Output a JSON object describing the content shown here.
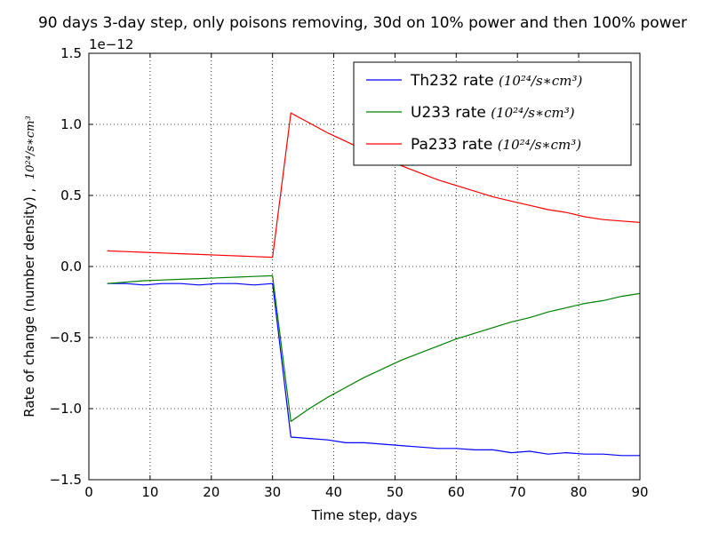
{
  "chart_data": {
    "type": "line",
    "title": "90 days 3-day step, only poisons removing, 30d on 10% power and then 100% power",
    "xlabel": "Time step, days",
    "ylabel": "Rate of change (number density) ,",
    "ylabel_unit": "10²⁴/s∗cm³",
    "y_scale_label": "1e−12",
    "xlim": [
      0,
      90
    ],
    "ylim": [
      -1.5,
      1.5
    ],
    "x_ticks": [
      0,
      10,
      20,
      30,
      40,
      50,
      60,
      70,
      80,
      90
    ],
    "x_tick_labels": [
      "0",
      "10",
      "20",
      "30",
      "40",
      "50",
      "60",
      "70",
      "80",
      "90"
    ],
    "y_ticks": [
      -1.5,
      -1.0,
      -0.5,
      0.0,
      0.5,
      1.0,
      1.5
    ],
    "y_tick_labels": [
      "−1.5",
      "−1.0",
      "−0.5",
      "0.0",
      "0.5",
      "1.0",
      "1.5"
    ],
    "grid": true,
    "legend_position": "top-right",
    "x": [
      3,
      6,
      9,
      12,
      15,
      18,
      21,
      24,
      27,
      30,
      33,
      36,
      39,
      42,
      45,
      48,
      51,
      54,
      57,
      60,
      63,
      66,
      69,
      72,
      75,
      78,
      81,
      84,
      87,
      90
    ],
    "series": [
      {
        "name": "Th232 rate",
        "legend_unit": "10²⁴/s∗cm³",
        "color": "#0000ff",
        "values": [
          -0.12,
          -0.12,
          -0.13,
          -0.12,
          -0.12,
          -0.13,
          -0.12,
          -0.12,
          -0.13,
          -0.12,
          -1.2,
          -1.21,
          -1.22,
          -1.24,
          -1.24,
          -1.25,
          -1.26,
          -1.27,
          -1.28,
          -1.28,
          -1.29,
          -1.29,
          -1.31,
          -1.3,
          -1.32,
          -1.31,
          -1.32,
          -1.32,
          -1.33,
          -1.33
        ]
      },
      {
        "name": "U233 rate",
        "legend_unit": "10²⁴/s∗cm³",
        "color": "#008000",
        "values": [
          -0.12,
          -0.11,
          -0.1,
          -0.095,
          -0.09,
          -0.085,
          -0.08,
          -0.075,
          -0.07,
          -0.065,
          -1.09,
          -1.0,
          -0.92,
          -0.85,
          -0.78,
          -0.72,
          -0.66,
          -0.61,
          -0.56,
          -0.51,
          -0.47,
          -0.43,
          -0.39,
          -0.36,
          -0.32,
          -0.29,
          -0.26,
          -0.24,
          -0.21,
          -0.19
        ]
      },
      {
        "name": "Pa233 rate",
        "legend_unit": "10²⁴/s∗cm³",
        "color": "#ff0000",
        "values": [
          0.11,
          0.105,
          0.1,
          0.095,
          0.09,
          0.085,
          0.08,
          0.075,
          0.07,
          0.065,
          1.08,
          1.01,
          0.94,
          0.88,
          0.82,
          0.76,
          0.71,
          0.66,
          0.61,
          0.57,
          0.53,
          0.49,
          0.46,
          0.43,
          0.4,
          0.38,
          0.35,
          0.33,
          0.32,
          0.31
        ]
      }
    ]
  }
}
